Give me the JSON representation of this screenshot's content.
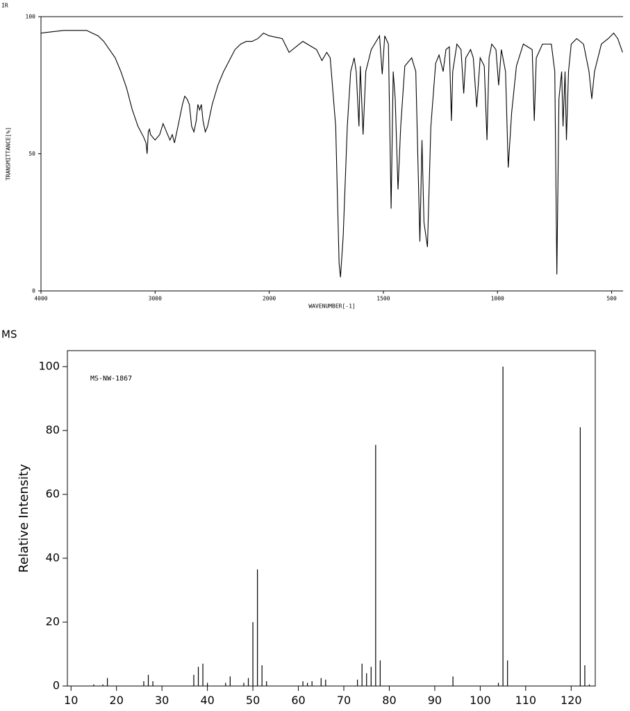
{
  "chart_data": [
    {
      "type": "line",
      "title": "IR",
      "xlabel": "WAVENUMBER[-1]",
      "ylabel": "TRANSMITTANCE[%]",
      "color": "#000000",
      "xlim": [
        4000,
        450
      ],
      "xscale_change": 2000,
      "xticks": [
        4000,
        3000,
        2000,
        1500,
        1000,
        500
      ],
      "ylim": [
        0,
        100
      ],
      "yticks": [
        0,
        50,
        100
      ],
      "x": [
        4000,
        3900,
        3800,
        3700,
        3600,
        3550,
        3500,
        3450,
        3400,
        3350,
        3300,
        3250,
        3200,
        3150,
        3100,
        3080,
        3070,
        3060,
        3050,
        3040,
        3000,
        2960,
        2930,
        2900,
        2870,
        2850,
        2830,
        2800,
        2760,
        2740,
        2720,
        2700,
        2680,
        2660,
        2640,
        2625,
        2610,
        2595,
        2580,
        2560,
        2540,
        2500,
        2450,
        2400,
        2350,
        2300,
        2250,
        2200,
        2150,
        2100,
        2050,
        2000,
        1943,
        1913,
        1853,
        1793,
        1769,
        1748,
        1733,
        1709,
        1694,
        1688,
        1676,
        1658,
        1643,
        1628,
        1619,
        1607,
        1601,
        1589,
        1577,
        1553,
        1517,
        1505,
        1494,
        1478,
        1466,
        1457,
        1448,
        1436,
        1424,
        1406,
        1376,
        1358,
        1340,
        1331,
        1322,
        1307,
        1292,
        1271,
        1256,
        1238,
        1226,
        1211,
        1202,
        1196,
        1178,
        1160,
        1148,
        1139,
        1118,
        1106,
        1091,
        1076,
        1058,
        1046,
        1037,
        1025,
        1007,
        995,
        983,
        965,
        953,
        938,
        917,
        887,
        848,
        839,
        830,
        803,
        764,
        749,
        740,
        731,
        719,
        713,
        704,
        698,
        689,
        677,
        653,
        623,
        599,
        587,
        575,
        545,
        515,
        491,
        473,
        452
      ],
      "values": [
        94,
        94.5,
        95,
        95,
        95,
        94,
        93,
        91,
        88,
        85,
        80,
        74,
        66,
        60,
        56,
        54,
        50,
        58,
        59,
        57,
        55,
        57,
        61,
        58,
        55,
        57,
        54,
        60,
        68,
        71,
        70,
        68,
        60,
        58,
        62,
        68,
        66,
        68,
        62,
        58,
        60,
        68,
        75,
        80,
        84,
        88,
        90,
        91,
        91,
        92,
        94,
        93,
        92,
        87,
        91,
        88,
        84,
        87,
        85,
        60,
        10,
        5,
        20,
        60,
        80,
        85,
        80,
        60,
        82,
        57,
        80,
        88,
        93,
        79,
        93,
        90,
        30,
        80,
        70,
        37,
        60,
        82,
        85,
        80,
        18,
        55,
        25,
        16,
        60,
        83,
        86,
        80,
        88,
        89,
        62,
        80,
        90,
        88,
        72,
        85,
        88,
        85,
        67,
        85,
        82,
        55,
        85,
        90,
        88,
        75,
        88,
        80,
        45,
        65,
        82,
        90,
        88,
        62,
        85,
        90,
        90,
        80,
        6,
        70,
        80,
        60,
        80,
        55,
        80,
        90,
        92,
        90,
        80,
        70,
        80,
        90,
        92,
        94,
        92,
        87
      ]
    },
    {
      "type": "bar",
      "title": "MS",
      "annotation": "MS-NW-1867",
      "ylabel": "Relative Intensity",
      "color": "#000000",
      "xlim": [
        9.2,
        125.3
      ],
      "xticks": [
        10,
        20,
        30,
        40,
        50,
        60,
        70,
        80,
        90,
        100,
        110,
        120
      ],
      "ylim": [
        0,
        105
      ],
      "yticks": [
        0,
        20,
        40,
        60,
        80,
        100
      ],
      "x": [
        15,
        17,
        18,
        26,
        27,
        28,
        37,
        38,
        39,
        40,
        44,
        45,
        48,
        49,
        50,
        51,
        52,
        53,
        61,
        62,
        63,
        65,
        66,
        73,
        74,
        75,
        76,
        77,
        78,
        94,
        104,
        105,
        106,
        122,
        123,
        124
      ],
      "values": [
        0.5,
        0.5,
        2.5,
        1.5,
        3.5,
        1.5,
        3.5,
        6,
        7,
        1,
        1,
        3,
        1,
        2.5,
        20,
        36.5,
        6.5,
        1.5,
        1.5,
        1,
        1.5,
        2.5,
        2,
        2,
        7,
        4,
        6,
        75.5,
        8,
        3,
        1,
        100,
        8,
        81,
        6.5,
        0.5
      ]
    }
  ]
}
